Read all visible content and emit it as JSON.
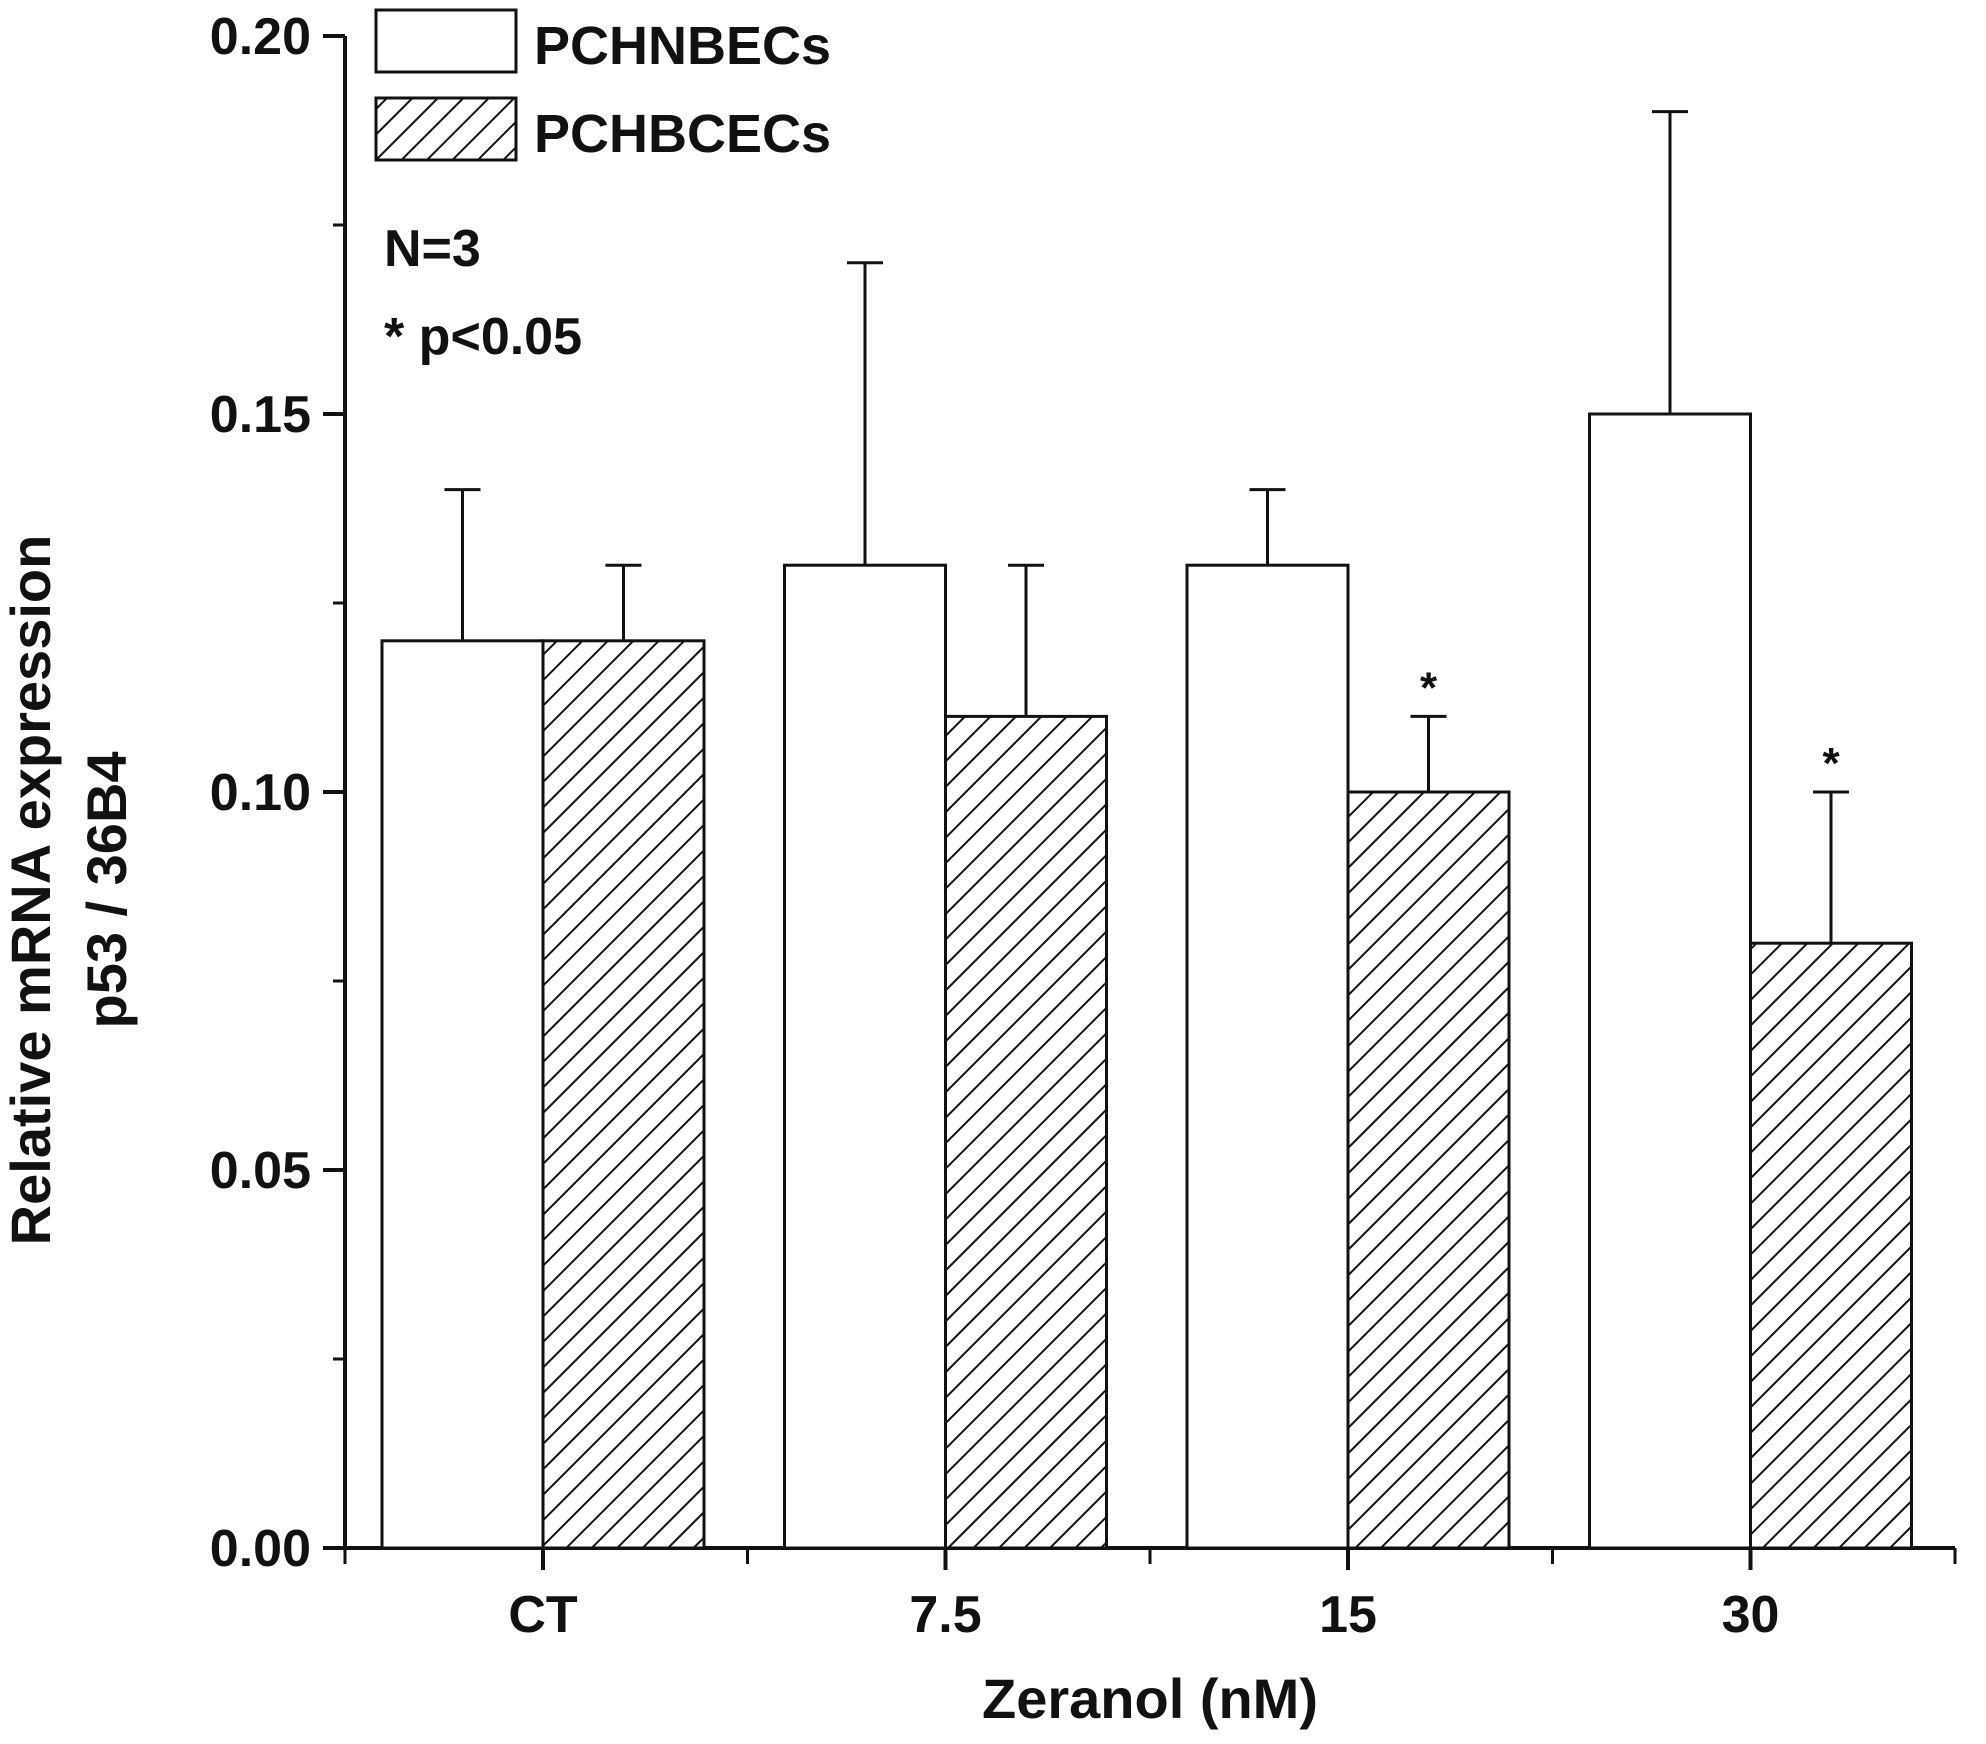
{
  "chart_data": {
    "type": "bar",
    "title": "",
    "xlabel": "Zeranol (nM)",
    "ylabel_lines": [
      "Relative mRNA expression",
      "p53 / 36B4"
    ],
    "categories": [
      "CT",
      "7.5",
      "15",
      "30"
    ],
    "ylim": [
      0,
      0.2
    ],
    "yticks": [
      "0.00",
      "0.05",
      "0.10",
      "0.15",
      "0.20"
    ],
    "ytick_values": [
      0,
      0.05,
      0.1,
      0.15,
      0.2
    ],
    "grid": false,
    "legend_position": "top-left",
    "series": [
      {
        "name": "PCHNBECs",
        "fill": "open",
        "values": [
          0.12,
          0.13,
          0.13,
          0.15
        ],
        "errors": [
          0.02,
          0.04,
          0.01,
          0.04
        ],
        "significance": [
          "",
          "",
          "",
          ""
        ]
      },
      {
        "name": "PCHBCECs",
        "fill": "hatched",
        "values": [
          0.12,
          0.11,
          0.1,
          0.08
        ],
        "errors": [
          0.01,
          0.02,
          0.01,
          0.02
        ],
        "significance": [
          "",
          "",
          "*",
          "*"
        ]
      }
    ],
    "annotations": [
      "N=3",
      "* p<0.05"
    ]
  },
  "colors": {
    "ink": "#111111",
    "background": "#ffffff"
  }
}
